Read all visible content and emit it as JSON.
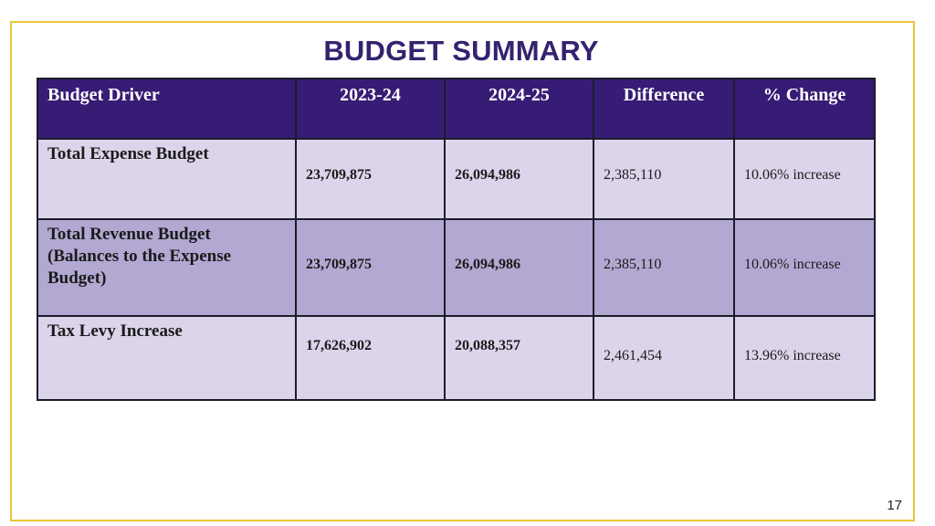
{
  "slide": {
    "title": "BUDGET SUMMARY",
    "page_number": "17"
  },
  "table": {
    "headers": [
      "Budget Driver",
      "2023-24",
      "2024-25",
      "Difference",
      "% Change"
    ],
    "rows": [
      {
        "driver": "Total Expense Budget",
        "y2023": "23,709,875",
        "y2024": "26,094,986",
        "difference": "2,385,110",
        "change": "10.06% increase"
      },
      {
        "driver": "Total Revenue Budget (Balances to the Expense Budget)",
        "y2023": "23,709,875",
        "y2024": "26,094,986",
        "difference": "2,385,110",
        "change": "10.06% increase"
      },
      {
        "driver": "Tax Levy Increase",
        "y2023": "17,626,902",
        "y2024": "20,088,357",
        "difference": "2,461,454",
        "change": "13.96% increase"
      }
    ]
  },
  "colors": {
    "title": "#35226f",
    "header_bg": "#361c74",
    "row_light": "#dcd4ea",
    "row_dark": "#b2a8d2",
    "frame": "#e8c73a"
  }
}
